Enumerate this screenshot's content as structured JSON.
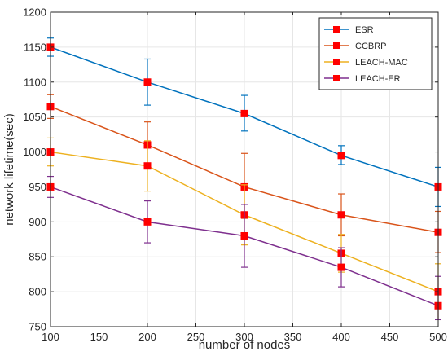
{
  "chart_data": {
    "type": "line",
    "title": "",
    "xlabel": "number of nodes",
    "ylabel": "network lifetime(sec)",
    "xlim": [
      100,
      500
    ],
    "ylim": [
      750,
      1200
    ],
    "xticks": [
      100,
      150,
      200,
      250,
      300,
      350,
      400,
      450,
      500
    ],
    "yticks": [
      750,
      800,
      850,
      900,
      950,
      1000,
      1050,
      1100,
      1150,
      1200
    ],
    "grid": true,
    "legend_position": "top-right",
    "x": [
      100,
      200,
      300,
      400,
      500
    ],
    "series": [
      {
        "name": "ESR",
        "color": "#0072BD",
        "values": [
          1150,
          1100,
          1055,
          995,
          950
        ],
        "err_low": [
          1137,
          1067,
          1030,
          982,
          922
        ],
        "err_high": [
          1163,
          1133,
          1081,
          1009,
          978
        ]
      },
      {
        "name": "CCBRP",
        "color": "#D95319",
        "values": [
          1065,
          1010,
          950,
          910,
          885
        ],
        "err_low": [
          1048,
          977,
          905,
          880,
          856
        ],
        "err_high": [
          1082,
          1043,
          998,
          940,
          915
        ]
      },
      {
        "name": "LEACH-MAC",
        "color": "#EDB120",
        "values": [
          1000,
          980,
          910,
          855,
          800
        ],
        "err_low": [
          980,
          944,
          867,
          828,
          760
        ],
        "err_high": [
          1020,
          1016,
          953,
          882,
          840
        ]
      },
      {
        "name": "LEACH-ER",
        "color": "#7E2F8E",
        "values": [
          950,
          900,
          880,
          835,
          780
        ],
        "err_low": [
          935,
          870,
          835,
          807,
          760
        ],
        "err_high": [
          965,
          930,
          925,
          863,
          822
        ]
      }
    ],
    "marker_color": "#FF0000"
  }
}
